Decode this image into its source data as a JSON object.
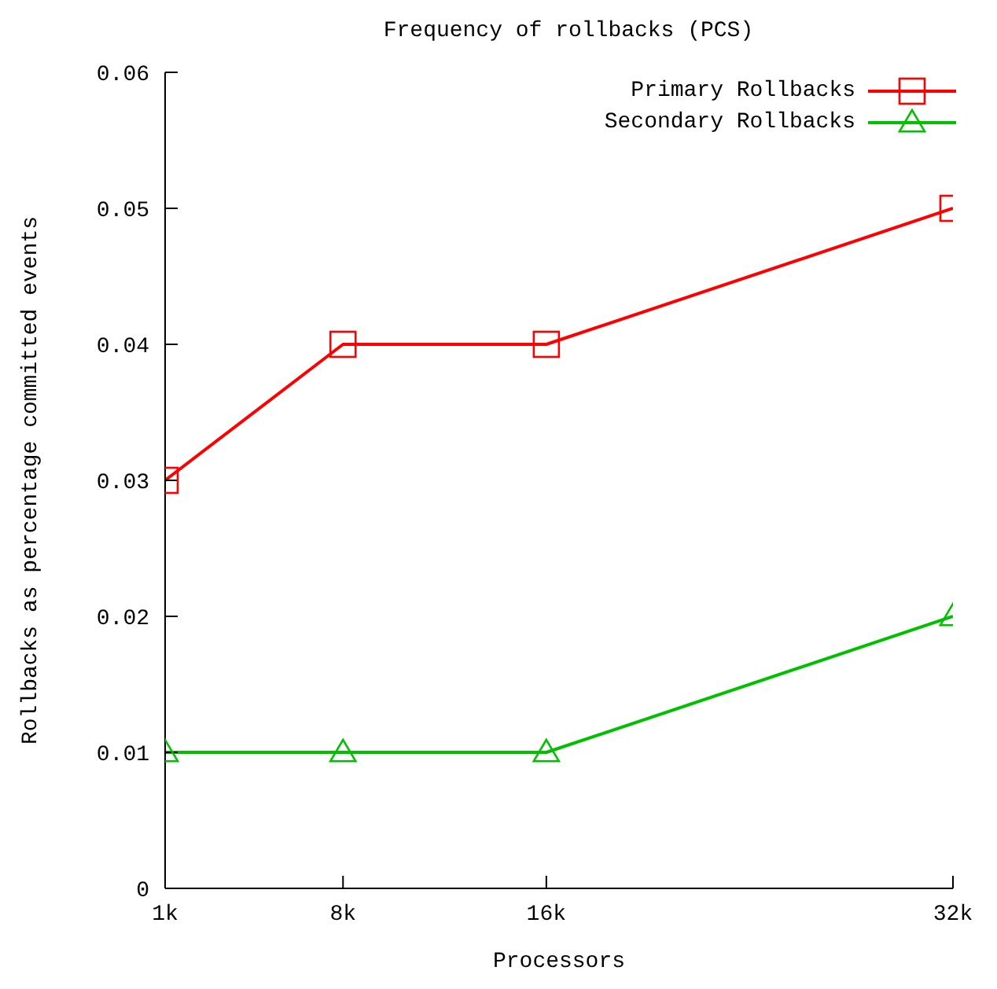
{
  "chart_data": {
    "type": "line",
    "title": "Frequency of rollbacks (PCS)",
    "xlabel": "Processors",
    "ylabel": "Rollbacks as percentage committed events",
    "x": [
      1000,
      8000,
      16000,
      32000
    ],
    "series": [
      {
        "name": "Primary Rollbacks",
        "color": "#ff0000",
        "values": [
          0.03,
          0.04,
          0.04,
          0.05
        ],
        "marker": "square"
      },
      {
        "name": "Secondary Rollbacks",
        "color": "#00c000",
        "values": [
          0.01,
          0.01,
          0.01,
          0.02
        ],
        "marker": "triangle"
      }
    ],
    "xlim": [
      1000,
      32000
    ],
    "xticks": [
      {
        "value": 1000,
        "label": "1k"
      },
      {
        "value": 8000,
        "label": "8k"
      },
      {
        "value": 16000,
        "label": "16k"
      },
      {
        "value": 32000,
        "label": "32k"
      }
    ],
    "ylim": [
      0,
      0.06
    ],
    "yticks": [
      0,
      0.01,
      0.02,
      0.03,
      0.04,
      0.05,
      0.06
    ],
    "legend": "top right",
    "grid": false,
    "line_style": "solid"
  }
}
